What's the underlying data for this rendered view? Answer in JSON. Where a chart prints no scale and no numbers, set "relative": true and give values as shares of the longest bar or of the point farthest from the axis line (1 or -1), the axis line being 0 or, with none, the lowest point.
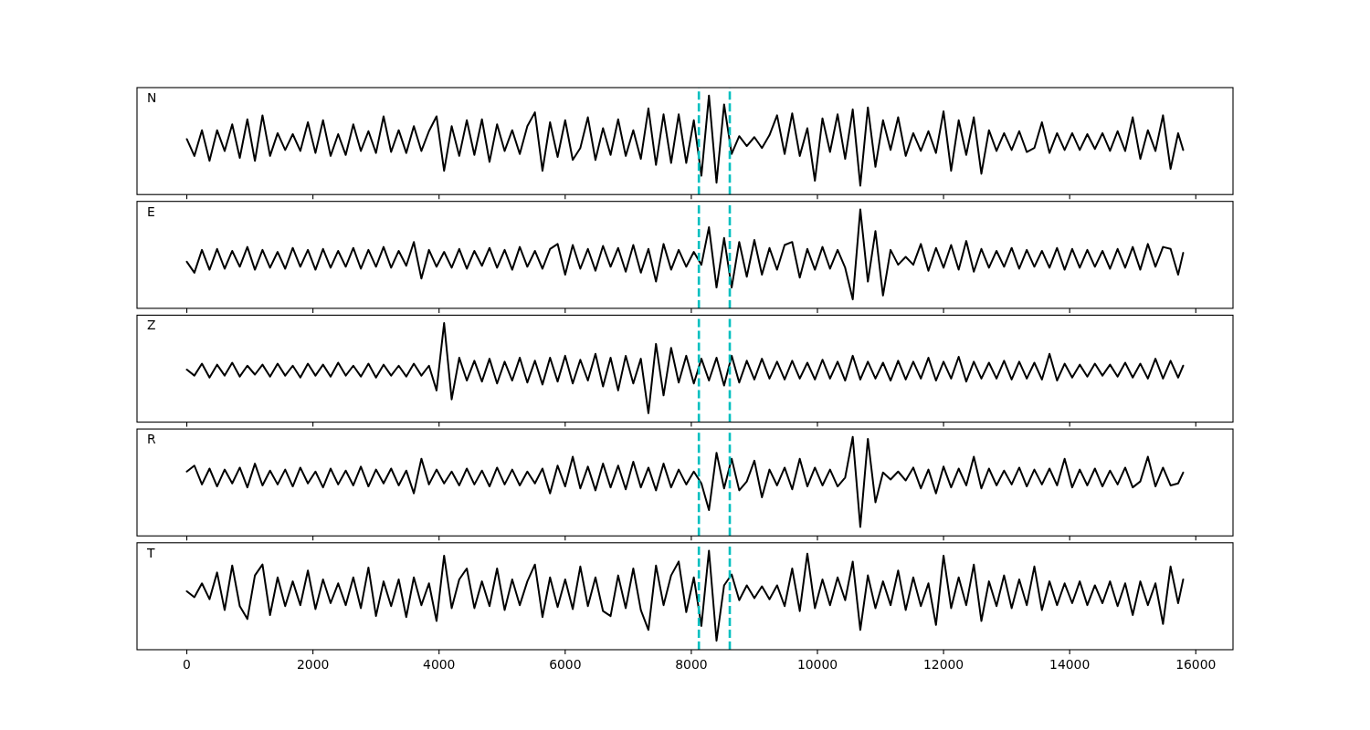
{
  "chart_data": [
    {
      "type": "line",
      "relative": true,
      "annotations": [
        "N"
      ],
      "xlim": [
        -790,
        16590
      ],
      "xticks": [
        0,
        2000,
        4000,
        6000,
        8000,
        10000,
        12000,
        14000,
        16000
      ],
      "tick_labels": false,
      "ref_lines": [
        {
          "axis": "x",
          "value": 8120,
          "color": "#00bfbf",
          "line_style": "dashed"
        },
        {
          "axis": "x",
          "value": 8610,
          "color": "#00bfbf",
          "line_style": "dashed"
        }
      ],
      "x": [
        0,
        120,
        240,
        360,
        480,
        600,
        720,
        840,
        960,
        1080,
        1200,
        1320,
        1440,
        1560,
        1680,
        1800,
        1920,
        2040,
        2160,
        2280,
        2400,
        2520,
        2640,
        2760,
        2880,
        3000,
        3120,
        3240,
        3360,
        3480,
        3600,
        3720,
        3840,
        3960,
        4080,
        4200,
        4320,
        4440,
        4560,
        4680,
        4800,
        4920,
        5040,
        5160,
        5280,
        5400,
        5520,
        5640,
        5760,
        5880,
        6000,
        6120,
        6240,
        6360,
        6480,
        6600,
        6720,
        6840,
        6960,
        7080,
        7200,
        7320,
        7440,
        7560,
        7680,
        7800,
        7920,
        8040,
        8160,
        8280,
        8400,
        8520,
        8640,
        8760,
        8880,
        9000,
        9120,
        9240,
        9360,
        9480,
        9600,
        9720,
        9840,
        9960,
        10080,
        10200,
        10320,
        10440,
        10560,
        10680,
        10800,
        10920,
        11040,
        11160,
        11280,
        11400,
        11520,
        11640,
        11760,
        11880,
        12000,
        12120,
        12240,
        12360,
        12480,
        12600,
        12720,
        12840,
        12960,
        13080,
        13200,
        13320,
        13440,
        13560,
        13680,
        13800,
        13920,
        14040,
        14160,
        14280,
        14400,
        14520,
        14640,
        14760,
        14880,
        15000,
        15120,
        15240,
        15360,
        15480,
        15600,
        15720,
        15800
      ],
      "series": [
        {
          "color": "#000000",
          "values": [
            0.56,
            0.39,
            0.65,
            0.34,
            0.65,
            0.44,
            0.71,
            0.37,
            0.76,
            0.34,
            0.8,
            0.39,
            0.62,
            0.45,
            0.61,
            0.44,
            0.73,
            0.42,
            0.75,
            0.39,
            0.61,
            0.4,
            0.71,
            0.44,
            0.64,
            0.42,
            0.79,
            0.43,
            0.65,
            0.42,
            0.69,
            0.44,
            0.64,
            0.79,
            0.24,
            0.69,
            0.39,
            0.75,
            0.4,
            0.76,
            0.33,
            0.71,
            0.44,
            0.65,
            0.41,
            0.69,
            0.83,
            0.24,
            0.73,
            0.38,
            0.75,
            0.35,
            0.47,
            0.78,
            0.35,
            0.67,
            0.4,
            0.76,
            0.39,
            0.65,
            0.36,
            0.87,
            0.3,
            0.81,
            0.32,
            0.81,
            0.32,
            0.75,
            0.19,
            1,
            0.12,
            0.91,
            0.41,
            0.59,
            0.49,
            0.58,
            0.47,
            0.6,
            0.8,
            0.41,
            0.82,
            0.39,
            0.67,
            0.14,
            0.77,
            0.43,
            0.81,
            0.36,
            0.86,
            0.09,
            0.88,
            0.28,
            0.75,
            0.45,
            0.78,
            0.39,
            0.62,
            0.44,
            0.64,
            0.42,
            0.84,
            0.24,
            0.75,
            0.4,
            0.78,
            0.21,
            0.65,
            0.44,
            0.62,
            0.45,
            0.64,
            0.43,
            0.47,
            0.73,
            0.42,
            0.62,
            0.45,
            0.62,
            0.45,
            0.61,
            0.46,
            0.62,
            0.44,
            0.64,
            0.44,
            0.78,
            0.36,
            0.65,
            0.44,
            0.8,
            0.26,
            0.62,
            0.45
          ]
        }
      ]
    },
    {
      "type": "line",
      "relative": true,
      "annotations": [
        "E"
      ],
      "xlim": [
        -790,
        16590
      ],
      "xticks": [
        0,
        2000,
        4000,
        6000,
        8000,
        10000,
        12000,
        14000,
        16000
      ],
      "tick_labels": false,
      "ref_lines": [
        {
          "axis": "x",
          "value": 8120,
          "color": "#00bfbf",
          "line_style": "dashed"
        },
        {
          "axis": "x",
          "value": 8610,
          "color": "#00bfbf",
          "line_style": "dashed"
        }
      ],
      "x": [
        0,
        120,
        240,
        360,
        480,
        600,
        720,
        840,
        960,
        1080,
        1200,
        1320,
        1440,
        1560,
        1680,
        1800,
        1920,
        2040,
        2160,
        2280,
        2400,
        2520,
        2640,
        2760,
        2880,
        3000,
        3120,
        3240,
        3360,
        3480,
        3600,
        3720,
        3840,
        3960,
        4080,
        4200,
        4320,
        4440,
        4560,
        4680,
        4800,
        4920,
        5040,
        5160,
        5280,
        5400,
        5520,
        5640,
        5760,
        5880,
        6000,
        6120,
        6240,
        6360,
        6480,
        6600,
        6720,
        6840,
        6960,
        7080,
        7200,
        7320,
        7440,
        7560,
        7680,
        7800,
        7920,
        8040,
        8160,
        8280,
        8400,
        8520,
        8640,
        8760,
        8880,
        9000,
        9120,
        9240,
        9360,
        9480,
        9600,
        9720,
        9840,
        9960,
        10080,
        10200,
        10320,
        10440,
        10560,
        10680,
        10800,
        10920,
        11040,
        11160,
        11280,
        11400,
        11520,
        11640,
        11760,
        11880,
        12000,
        12120,
        12240,
        12360,
        12480,
        12600,
        12720,
        12840,
        12960,
        13080,
        13200,
        13320,
        13440,
        13560,
        13680,
        13800,
        13920,
        14040,
        14160,
        14280,
        14400,
        14520,
        14640,
        14760,
        14880,
        15000,
        15120,
        15240,
        15360,
        15480,
        15600,
        15720,
        15800
      ],
      "series": [
        {
          "color": "#000000",
          "values": [
            0.47,
            0.36,
            0.59,
            0.39,
            0.6,
            0.4,
            0.58,
            0.42,
            0.62,
            0.39,
            0.59,
            0.41,
            0.57,
            0.4,
            0.61,
            0.42,
            0.59,
            0.39,
            0.6,
            0.41,
            0.58,
            0.42,
            0.61,
            0.4,
            0.59,
            0.42,
            0.62,
            0.41,
            0.58,
            0.43,
            0.67,
            0.3,
            0.59,
            0.42,
            0.57,
            0.41,
            0.6,
            0.4,
            0.58,
            0.43,
            0.61,
            0.41,
            0.59,
            0.39,
            0.62,
            0.42,
            0.58,
            0.4,
            0.6,
            0.65,
            0.34,
            0.64,
            0.4,
            0.6,
            0.38,
            0.63,
            0.42,
            0.61,
            0.37,
            0.64,
            0.36,
            0.6,
            0.27,
            0.65,
            0.39,
            0.59,
            0.42,
            0.57,
            0.44,
            0.82,
            0.21,
            0.71,
            0.21,
            0.67,
            0.32,
            0.69,
            0.34,
            0.61,
            0.39,
            0.64,
            0.67,
            0.31,
            0.6,
            0.39,
            0.62,
            0.4,
            0.59,
            0.41,
            0.09,
            1,
            0.27,
            0.78,
            0.13,
            0.59,
            0.44,
            0.52,
            0.44,
            0.65,
            0.38,
            0.61,
            0.41,
            0.64,
            0.39,
            0.68,
            0.37,
            0.6,
            0.41,
            0.58,
            0.42,
            0.61,
            0.4,
            0.59,
            0.42,
            0.58,
            0.41,
            0.61,
            0.39,
            0.6,
            0.41,
            0.59,
            0.42,
            0.58,
            0.4,
            0.6,
            0.41,
            0.62,
            0.39,
            0.65,
            0.42,
            0.62,
            0.6,
            0.34,
            0.56
          ]
        }
      ]
    },
    {
      "type": "line",
      "relative": true,
      "annotations": [
        "Z"
      ],
      "xlim": [
        -790,
        16590
      ],
      "xticks": [
        0,
        2000,
        4000,
        6000,
        8000,
        10000,
        12000,
        14000,
        16000
      ],
      "tick_labels": false,
      "ref_lines": [
        {
          "axis": "x",
          "value": 8120,
          "color": "#00bfbf",
          "line_style": "dashed"
        },
        {
          "axis": "x",
          "value": 8610,
          "color": "#00bfbf",
          "line_style": "dashed"
        }
      ],
      "x": [
        0,
        120,
        240,
        360,
        480,
        600,
        720,
        840,
        960,
        1080,
        1200,
        1320,
        1440,
        1560,
        1680,
        1800,
        1920,
        2040,
        2160,
        2280,
        2400,
        2520,
        2640,
        2760,
        2880,
        3000,
        3120,
        3240,
        3360,
        3480,
        3600,
        3720,
        3840,
        3960,
        4080,
        4200,
        4320,
        4440,
        4560,
        4680,
        4800,
        4920,
        5040,
        5160,
        5280,
        5400,
        5520,
        5640,
        5760,
        5880,
        6000,
        6120,
        6240,
        6360,
        6480,
        6600,
        6720,
        6840,
        6960,
        7080,
        7200,
        7320,
        7440,
        7560,
        7680,
        7800,
        7920,
        8040,
        8160,
        8280,
        8400,
        8520,
        8640,
        8760,
        8880,
        9000,
        9120,
        9240,
        9360,
        9480,
        9600,
        9720,
        9840,
        9960,
        10080,
        10200,
        10320,
        10440,
        10560,
        10680,
        10800,
        10920,
        11040,
        11160,
        11280,
        11400,
        11520,
        11640,
        11760,
        11880,
        12000,
        12120,
        12240,
        12360,
        12480,
        12600,
        12720,
        12840,
        12960,
        13080,
        13200,
        13320,
        13440,
        13560,
        13680,
        13800,
        13920,
        14040,
        14160,
        14280,
        14400,
        14520,
        14640,
        14760,
        14880,
        15000,
        15120,
        15240,
        15360,
        15480,
        15600,
        15720,
        15800
      ],
      "series": [
        {
          "color": "#000000",
          "values": [
            0.53,
            0.47,
            0.59,
            0.45,
            0.58,
            0.47,
            0.6,
            0.46,
            0.57,
            0.48,
            0.58,
            0.46,
            0.59,
            0.47,
            0.57,
            0.45,
            0.59,
            0.47,
            0.58,
            0.46,
            0.6,
            0.47,
            0.57,
            0.46,
            0.59,
            0.45,
            0.58,
            0.47,
            0.57,
            0.46,
            0.59,
            0.47,
            0.57,
            0.32,
            1,
            0.23,
            0.65,
            0.42,
            0.62,
            0.41,
            0.64,
            0.39,
            0.61,
            0.42,
            0.65,
            0.4,
            0.62,
            0.38,
            0.65,
            0.41,
            0.67,
            0.39,
            0.63,
            0.42,
            0.69,
            0.36,
            0.65,
            0.32,
            0.67,
            0.39,
            0.64,
            0.09,
            0.79,
            0.27,
            0.75,
            0.4,
            0.67,
            0.39,
            0.64,
            0.42,
            0.65,
            0.37,
            0.67,
            0.4,
            0.62,
            0.43,
            0.64,
            0.44,
            0.61,
            0.43,
            0.62,
            0.44,
            0.6,
            0.43,
            0.63,
            0.44,
            0.61,
            0.42,
            0.67,
            0.43,
            0.61,
            0.44,
            0.6,
            0.42,
            0.62,
            0.43,
            0.61,
            0.44,
            0.65,
            0.42,
            0.61,
            0.44,
            0.66,
            0.41,
            0.61,
            0.44,
            0.6,
            0.44,
            0.62,
            0.43,
            0.61,
            0.44,
            0.6,
            0.43,
            0.69,
            0.42,
            0.59,
            0.45,
            0.58,
            0.46,
            0.59,
            0.47,
            0.58,
            0.46,
            0.6,
            0.45,
            0.59,
            0.44,
            0.64,
            0.44,
            0.62,
            0.45,
            0.57
          ]
        }
      ]
    },
    {
      "type": "line",
      "relative": true,
      "annotations": [
        "R"
      ],
      "xlim": [
        -790,
        16590
      ],
      "xticks": [
        0,
        2000,
        4000,
        6000,
        8000,
        10000,
        12000,
        14000,
        16000
      ],
      "tick_labels": false,
      "ref_lines": [
        {
          "axis": "x",
          "value": 8120,
          "color": "#00bfbf",
          "line_style": "dashed"
        },
        {
          "axis": "x",
          "value": 8610,
          "color": "#00bfbf",
          "line_style": "dashed"
        }
      ],
      "x": [
        0,
        120,
        240,
        360,
        480,
        600,
        720,
        840,
        960,
        1080,
        1200,
        1320,
        1440,
        1560,
        1680,
        1800,
        1920,
        2040,
        2160,
        2280,
        2400,
        2520,
        2640,
        2760,
        2880,
        3000,
        3120,
        3240,
        3360,
        3480,
        3600,
        3720,
        3840,
        3960,
        4080,
        4200,
        4320,
        4440,
        4560,
        4680,
        4800,
        4920,
        5040,
        5160,
        5280,
        5400,
        5520,
        5640,
        5760,
        5880,
        6000,
        6120,
        6240,
        6360,
        6480,
        6600,
        6720,
        6840,
        6960,
        7080,
        7200,
        7320,
        7440,
        7560,
        7680,
        7800,
        7920,
        8040,
        8160,
        8280,
        8400,
        8520,
        8640,
        8760,
        8880,
        9000,
        9120,
        9240,
        9360,
        9480,
        9600,
        9720,
        9840,
        9960,
        10080,
        10200,
        10320,
        10440,
        10560,
        10680,
        10800,
        10920,
        11040,
        11160,
        11280,
        11400,
        11520,
        11640,
        11760,
        11880,
        12000,
        12120,
        12240,
        12360,
        12480,
        12600,
        12720,
        12840,
        12960,
        13080,
        13200,
        13320,
        13440,
        13560,
        13680,
        13800,
        13920,
        14040,
        14160,
        14280,
        14400,
        14520,
        14640,
        14760,
        14880,
        15000,
        15120,
        15240,
        15360,
        15480,
        15600,
        15720,
        15800
      ],
      "series": [
        {
          "color": "#000000",
          "values": [
            0.65,
            0.71,
            0.52,
            0.68,
            0.5,
            0.67,
            0.53,
            0.69,
            0.49,
            0.73,
            0.51,
            0.66,
            0.52,
            0.67,
            0.5,
            0.69,
            0.53,
            0.65,
            0.49,
            0.68,
            0.52,
            0.66,
            0.51,
            0.7,
            0.5,
            0.67,
            0.53,
            0.68,
            0.51,
            0.66,
            0.43,
            0.78,
            0.52,
            0.67,
            0.53,
            0.65,
            0.51,
            0.68,
            0.52,
            0.66,
            0.5,
            0.69,
            0.52,
            0.67,
            0.51,
            0.65,
            0.53,
            0.68,
            0.43,
            0.71,
            0.5,
            0.8,
            0.48,
            0.7,
            0.46,
            0.73,
            0.49,
            0.71,
            0.47,
            0.75,
            0.49,
            0.69,
            0.46,
            0.73,
            0.49,
            0.67,
            0.52,
            0.65,
            0.53,
            0.26,
            0.84,
            0.48,
            0.78,
            0.46,
            0.55,
            0.76,
            0.39,
            0.67,
            0.51,
            0.69,
            0.47,
            0.78,
            0.5,
            0.69,
            0.51,
            0.67,
            0.5,
            0.59,
            1,
            0.09,
            0.98,
            0.34,
            0.64,
            0.57,
            0.65,
            0.56,
            0.69,
            0.48,
            0.67,
            0.43,
            0.7,
            0.49,
            0.68,
            0.51,
            0.8,
            0.48,
            0.68,
            0.51,
            0.66,
            0.52,
            0.69,
            0.5,
            0.67,
            0.52,
            0.68,
            0.51,
            0.78,
            0.49,
            0.67,
            0.51,
            0.68,
            0.5,
            0.66,
            0.52,
            0.69,
            0.49,
            0.55,
            0.8,
            0.5,
            0.69,
            0.51,
            0.53,
            0.64
          ]
        }
      ]
    },
    {
      "type": "line",
      "relative": true,
      "annotations": [
        "T"
      ],
      "xlim": [
        -790,
        16590
      ],
      "xticks": [
        0,
        2000,
        4000,
        6000,
        8000,
        10000,
        12000,
        14000,
        16000
      ],
      "tick_labels": "x",
      "ref_lines": [
        {
          "axis": "x",
          "value": 8120,
          "color": "#00bfbf",
          "line_style": "dashed"
        },
        {
          "axis": "x",
          "value": 8610,
          "color": "#00bfbf",
          "line_style": "dashed"
        }
      ],
      "x": [
        0,
        120,
        240,
        360,
        480,
        600,
        720,
        840,
        960,
        1080,
        1200,
        1320,
        1440,
        1560,
        1680,
        1800,
        1920,
        2040,
        2160,
        2280,
        2400,
        2520,
        2640,
        2760,
        2880,
        3000,
        3120,
        3240,
        3360,
        3480,
        3600,
        3720,
        3840,
        3960,
        4080,
        4200,
        4320,
        4440,
        4560,
        4680,
        4800,
        4920,
        5040,
        5160,
        5280,
        5400,
        5520,
        5640,
        5760,
        5880,
        6000,
        6120,
        6240,
        6360,
        6480,
        6600,
        6720,
        6840,
        6960,
        7080,
        7200,
        7320,
        7440,
        7560,
        7680,
        7800,
        7920,
        8040,
        8160,
        8280,
        8400,
        8520,
        8640,
        8760,
        8880,
        9000,
        9120,
        9240,
        9360,
        9480,
        9600,
        9720,
        9840,
        9960,
        10080,
        10200,
        10320,
        10440,
        10560,
        10680,
        10800,
        10920,
        11040,
        11160,
        11280,
        11400,
        11520,
        11640,
        11760,
        11880,
        12000,
        12120,
        12240,
        12360,
        12480,
        12600,
        12720,
        12840,
        12960,
        13080,
        13200,
        13320,
        13440,
        13560,
        13680,
        13800,
        13920,
        14040,
        14160,
        14280,
        14400,
        14520,
        14640,
        14760,
        14880,
        15000,
        15120,
        15240,
        15360,
        15480,
        15600,
        15720,
        15800
      ],
      "series": [
        {
          "color": "#000000",
          "values": [
            0.59,
            0.53,
            0.67,
            0.51,
            0.78,
            0.4,
            0.85,
            0.44,
            0.31,
            0.75,
            0.86,
            0.35,
            0.73,
            0.44,
            0.69,
            0.45,
            0.8,
            0.41,
            0.71,
            0.47,
            0.67,
            0.45,
            0.73,
            0.42,
            0.83,
            0.34,
            0.69,
            0.44,
            0.71,
            0.33,
            0.73,
            0.45,
            0.67,
            0.29,
            0.95,
            0.42,
            0.71,
            0.82,
            0.42,
            0.69,
            0.44,
            0.82,
            0.4,
            0.71,
            0.45,
            0.69,
            0.86,
            0.33,
            0.73,
            0.43,
            0.71,
            0.41,
            0.84,
            0.44,
            0.73,
            0.39,
            0.34,
            0.75,
            0.42,
            0.82,
            0.4,
            0.2,
            0.85,
            0.45,
            0.75,
            0.89,
            0.38,
            0.73,
            0.24,
            1,
            0.09,
            0.65,
            0.76,
            0.5,
            0.65,
            0.52,
            0.64,
            0.51,
            0.65,
            0.44,
            0.82,
            0.39,
            0.97,
            0.42,
            0.71,
            0.45,
            0.73,
            0.5,
            0.89,
            0.2,
            0.75,
            0.42,
            0.69,
            0.45,
            0.8,
            0.4,
            0.73,
            0.44,
            0.67,
            0.25,
            0.95,
            0.42,
            0.73,
            0.45,
            0.86,
            0.29,
            0.69,
            0.44,
            0.75,
            0.42,
            0.71,
            0.45,
            0.84,
            0.4,
            0.69,
            0.45,
            0.67,
            0.47,
            0.69,
            0.45,
            0.65,
            0.47,
            0.69,
            0.44,
            0.67,
            0.35,
            0.69,
            0.45,
            0.67,
            0.26,
            0.84,
            0.47,
            0.71
          ]
        }
      ]
    }
  ]
}
